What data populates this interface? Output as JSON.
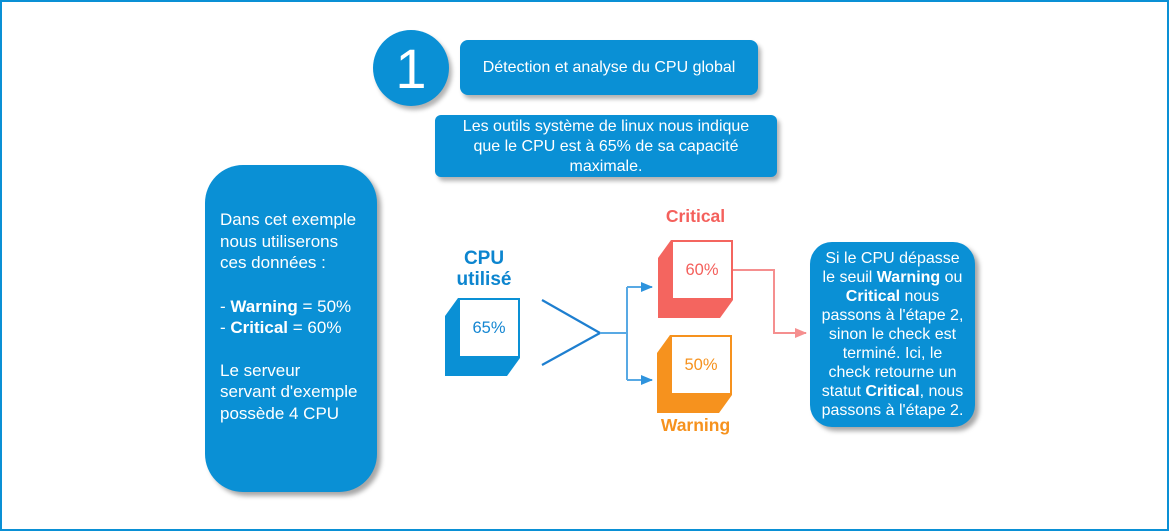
{
  "colors": {
    "primary_blue": "#0a90d5",
    "blue_text": "#0c85cf",
    "connector_blue": "#58a9e4",
    "chevron_blue": "#1e7fd0",
    "critical_red": "#f4655f",
    "critical_connector_red": "#f58f8f",
    "warning_orange": "#f6921e",
    "background": "#ffffff"
  },
  "step": {
    "number": "1",
    "title": "Détection et analyse du CPU global"
  },
  "intro_note": {
    "text": "Les outils système de linux nous indique que le CPU est à 65% de sa capacité maximale."
  },
  "example_panel": {
    "intro": [
      {
        "text": "Dans cet exemple nous utiliserons ces données :",
        "bold": false
      }
    ],
    "warning_line": [
      {
        "text": "- ",
        "bold": false
      },
      {
        "text": "Warning",
        "bold": true
      },
      {
        "text": " = 50%",
        "bold": false
      }
    ],
    "critical_line": [
      {
        "text": "- ",
        "bold": false
      },
      {
        "text": "Critical",
        "bold": true
      },
      {
        "text": " = 60%",
        "bold": false
      }
    ],
    "outro": [
      {
        "text": "Le serveur servant d'exemple possède 4 CPU",
        "bold": false
      }
    ]
  },
  "cpu_node": {
    "label": "CPU utilisé",
    "value": "65%"
  },
  "critical_node": {
    "label": "Critical",
    "value": "60%"
  },
  "warning_node": {
    "label": "Warning",
    "value": "50%"
  },
  "outcome_note": {
    "segments": [
      {
        "text": "Si le CPU dépasse le seuil ",
        "bold": false
      },
      {
        "text": "Warning",
        "bold": true
      },
      {
        "text": " ou ",
        "bold": false
      },
      {
        "text": "Critical",
        "bold": true
      },
      {
        "text": " nous passons à l'étape 2, sinon le check est terminé. Ici, le check retourne un statut ",
        "bold": false
      },
      {
        "text": "Critical",
        "bold": true
      },
      {
        "text": ", nous passons à l'étape 2.",
        "bold": false
      }
    ]
  }
}
